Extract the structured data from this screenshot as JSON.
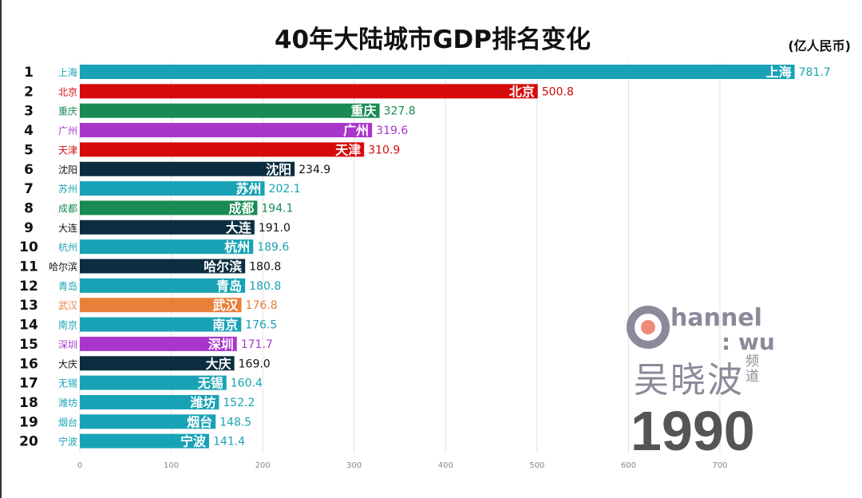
{
  "title": "40年大陆城市GDP排名变化",
  "unit": "(亿人民币)",
  "year": "1990",
  "logo": {
    "text1": "Channel",
    "text2": "WU",
    "text3": "吴晓波",
    "text4": "频道"
  },
  "colors": {
    "teal": "#19a2b6",
    "red": "#d60a0a",
    "green": "#198a52",
    "purple": "#a936cc",
    "navy": "#0b2d3f",
    "orange": "#e8803a"
  },
  "chart_data": {
    "type": "bar",
    "orientation": "horizontal",
    "title": "40年大陆城市GDP排名变化",
    "xlim": [
      0,
      780
    ],
    "xticks": [
      0,
      100,
      200,
      300,
      400,
      500,
      600,
      700
    ],
    "grid": true,
    "ranks": [
      1,
      2,
      3,
      4,
      5,
      6,
      7,
      8,
      9,
      10,
      11,
      12,
      13,
      14,
      15,
      16,
      17,
      18,
      19,
      20
    ],
    "categories": [
      "上海",
      "北京",
      "重庆",
      "广州",
      "天津",
      "沈阳",
      "苏州",
      "成都",
      "大连",
      "杭州",
      "哈尔滨",
      "青岛",
      "武汉",
      "南京",
      "深圳",
      "大庆",
      "无锡",
      "潍坊",
      "烟台",
      "宁波"
    ],
    "values": [
      781.7,
      500.8,
      327.8,
      319.6,
      310.9,
      234.9,
      202.1,
      194.1,
      191.0,
      189.6,
      180.8,
      180.8,
      176.8,
      176.5,
      171.7,
      169.0,
      160.4,
      152.2,
      148.5,
      141.4
    ],
    "value_labels": [
      "781.7",
      "500.8",
      "327.8",
      "319.6",
      "310.9",
      "234.9",
      "202.1",
      "194.1",
      "191.0",
      "189.6",
      "180.8",
      "180.8",
      "176.8",
      "176.5",
      "171.7",
      "169.0",
      "160.4",
      "152.2",
      "148.5",
      "141.4"
    ],
    "bar_colors": [
      "teal",
      "red",
      "green",
      "purple",
      "red",
      "navy",
      "teal",
      "green",
      "navy",
      "teal",
      "navy",
      "teal",
      "orange",
      "teal",
      "purple",
      "navy",
      "teal",
      "teal",
      "teal",
      "teal"
    ]
  }
}
